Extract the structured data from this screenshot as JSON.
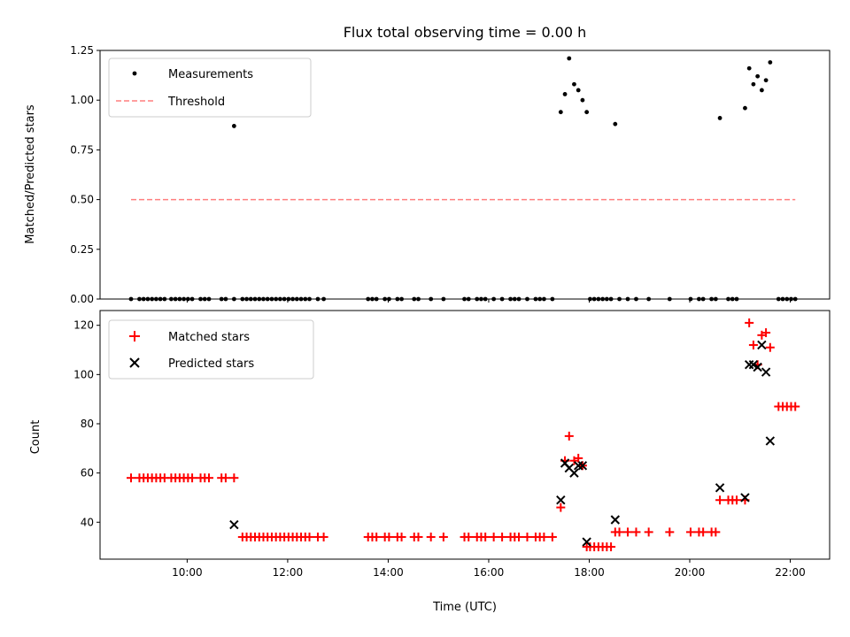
{
  "figure": {
    "title": "Flux total observing time = 0.00 h",
    "xlabel": "Time (UTC)"
  },
  "colors": {
    "measurement": "#000000",
    "threshold": "#ff7f7f",
    "matched": "#ff0000",
    "predicted": "#000000"
  },
  "chart_data": [
    {
      "type": "scatter",
      "title": "Flux total observing time = 0.00 h",
      "xlabel": "Time (UTC)",
      "ylabel": "Matched/Predicted stars",
      "xlim": [
        "08:16",
        "22:47"
      ],
      "ylim": [
        0,
        1.25
      ],
      "yticks": [
        "0.00",
        "0.25",
        "0.50",
        "0.75",
        "1.00",
        "1.25"
      ],
      "legend": {
        "position": "top-left",
        "entries": [
          "Measurements",
          "Threshold"
        ]
      },
      "series": [
        {
          "name": "Measurements",
          "marker": "dot",
          "points": [
            [
              "08:53",
              0
            ],
            [
              "09:03",
              0
            ],
            [
              "09:08",
              0
            ],
            [
              "09:13",
              0
            ],
            [
              "09:18",
              0
            ],
            [
              "09:23",
              0
            ],
            [
              "09:28",
              0
            ],
            [
              "09:33",
              0
            ],
            [
              "09:41",
              0
            ],
            [
              "09:46",
              0
            ],
            [
              "09:51",
              0
            ],
            [
              "09:56",
              0
            ],
            [
              "10:01",
              0
            ],
            [
              "10:06",
              0
            ],
            [
              "10:16",
              0
            ],
            [
              "10:21",
              0
            ],
            [
              "10:26",
              0
            ],
            [
              "10:41",
              0
            ],
            [
              "10:46",
              0
            ],
            [
              "10:56",
              0
            ],
            [
              "10:56",
              0.87
            ],
            [
              "11:06",
              0
            ],
            [
              "11:11",
              0
            ],
            [
              "11:16",
              0
            ],
            [
              "11:21",
              0
            ],
            [
              "11:26",
              0
            ],
            [
              "11:31",
              0
            ],
            [
              "11:36",
              0
            ],
            [
              "11:41",
              0
            ],
            [
              "11:46",
              0
            ],
            [
              "11:51",
              0
            ],
            [
              "11:56",
              0
            ],
            [
              "12:01",
              0
            ],
            [
              "12:06",
              0
            ],
            [
              "12:11",
              0
            ],
            [
              "12:16",
              0
            ],
            [
              "12:21",
              0
            ],
            [
              "12:26",
              0
            ],
            [
              "12:36",
              0
            ],
            [
              "12:43",
              0
            ],
            [
              "13:36",
              0
            ],
            [
              "13:41",
              0
            ],
            [
              "13:46",
              0
            ],
            [
              "13:56",
              0
            ],
            [
              "14:01",
              0
            ],
            [
              "14:11",
              0
            ],
            [
              "14:16",
              0
            ],
            [
              "14:31",
              0
            ],
            [
              "14:36",
              0
            ],
            [
              "14:51",
              0
            ],
            [
              "15:06",
              0
            ],
            [
              "15:31",
              0
            ],
            [
              "15:36",
              0
            ],
            [
              "15:46",
              0
            ],
            [
              "15:51",
              0
            ],
            [
              "15:56",
              0
            ],
            [
              "16:06",
              0
            ],
            [
              "16:16",
              0
            ],
            [
              "16:26",
              0
            ],
            [
              "16:31",
              0
            ],
            [
              "16:36",
              0
            ],
            [
              "16:46",
              0
            ],
            [
              "16:56",
              0
            ],
            [
              "17:01",
              0
            ],
            [
              "17:06",
              0
            ],
            [
              "17:16",
              0
            ],
            [
              "17:26",
              0.94
            ],
            [
              "17:31",
              1.03
            ],
            [
              "17:36",
              1.21
            ],
            [
              "17:42",
              1.08
            ],
            [
              "17:47",
              1.05
            ],
            [
              "17:52",
              1.0
            ],
            [
              "17:57",
              0.94
            ],
            [
              "18:01",
              0
            ],
            [
              "18:06",
              0
            ],
            [
              "18:11",
              0
            ],
            [
              "18:16",
              0
            ],
            [
              "18:21",
              0
            ],
            [
              "18:26",
              0
            ],
            [
              "18:31",
              0.88
            ],
            [
              "18:36",
              0
            ],
            [
              "18:46",
              0
            ],
            [
              "18:56",
              0
            ],
            [
              "19:11",
              0
            ],
            [
              "19:36",
              0
            ],
            [
              "20:01",
              0
            ],
            [
              "20:11",
              0
            ],
            [
              "20:16",
              0
            ],
            [
              "20:26",
              0
            ],
            [
              "20:31",
              0
            ],
            [
              "20:36",
              0.91
            ],
            [
              "20:46",
              0
            ],
            [
              "20:51",
              0
            ],
            [
              "20:56",
              0
            ],
            [
              "21:06",
              0.96
            ],
            [
              "21:11",
              1.16
            ],
            [
              "21:16",
              1.08
            ],
            [
              "21:21",
              1.12
            ],
            [
              "21:26",
              1.05
            ],
            [
              "21:31",
              1.1
            ],
            [
              "21:36",
              1.19
            ],
            [
              "21:46",
              0
            ],
            [
              "21:51",
              0
            ],
            [
              "21:56",
              0
            ],
            [
              "22:01",
              0
            ],
            [
              "22:06",
              0
            ]
          ]
        },
        {
          "name": "Threshold",
          "style": "dashed",
          "x": [
            "08:53",
            "22:06"
          ],
          "y": [
            0.5,
            0.5
          ]
        }
      ]
    },
    {
      "type": "scatter",
      "xlabel": "Time (UTC)",
      "ylabel": "Count",
      "xlim": [
        "08:16",
        "22:47"
      ],
      "ylim": [
        25,
        126
      ],
      "yticks": [
        "40",
        "60",
        "80",
        "100",
        "120"
      ],
      "xticks": [
        "10:00",
        "12:00",
        "14:00",
        "16:00",
        "18:00",
        "20:00",
        "22:00"
      ],
      "legend": {
        "position": "top-left",
        "entries": [
          "Matched stars",
          "Predicted stars"
        ]
      },
      "series": [
        {
          "name": "Matched stars",
          "marker": "plus",
          "points": [
            [
              "08:53",
              58
            ],
            [
              "09:03",
              58
            ],
            [
              "09:08",
              58
            ],
            [
              "09:13",
              58
            ],
            [
              "09:18",
              58
            ],
            [
              "09:23",
              58
            ],
            [
              "09:28",
              58
            ],
            [
              "09:33",
              58
            ],
            [
              "09:41",
              58
            ],
            [
              "09:46",
              58
            ],
            [
              "09:51",
              58
            ],
            [
              "09:56",
              58
            ],
            [
              "10:01",
              58
            ],
            [
              "10:06",
              58
            ],
            [
              "10:16",
              58
            ],
            [
              "10:21",
              58
            ],
            [
              "10:26",
              58
            ],
            [
              "10:41",
              58
            ],
            [
              "10:46",
              58
            ],
            [
              "10:56",
              58
            ],
            [
              "11:06",
              34
            ],
            [
              "11:11",
              34
            ],
            [
              "11:16",
              34
            ],
            [
              "11:21",
              34
            ],
            [
              "11:26",
              34
            ],
            [
              "11:31",
              34
            ],
            [
              "11:36",
              34
            ],
            [
              "11:41",
              34
            ],
            [
              "11:46",
              34
            ],
            [
              "11:51",
              34
            ],
            [
              "11:56",
              34
            ],
            [
              "12:01",
              34
            ],
            [
              "12:06",
              34
            ],
            [
              "12:11",
              34
            ],
            [
              "12:16",
              34
            ],
            [
              "12:21",
              34
            ],
            [
              "12:26",
              34
            ],
            [
              "12:36",
              34
            ],
            [
              "12:43",
              34
            ],
            [
              "13:36",
              34
            ],
            [
              "13:41",
              34
            ],
            [
              "13:46",
              34
            ],
            [
              "13:56",
              34
            ],
            [
              "14:01",
              34
            ],
            [
              "14:11",
              34
            ],
            [
              "14:16",
              34
            ],
            [
              "14:31",
              34
            ],
            [
              "14:36",
              34
            ],
            [
              "14:51",
              34
            ],
            [
              "15:06",
              34
            ],
            [
              "15:31",
              34
            ],
            [
              "15:36",
              34
            ],
            [
              "15:46",
              34
            ],
            [
              "15:51",
              34
            ],
            [
              "15:56",
              34
            ],
            [
              "16:06",
              34
            ],
            [
              "16:16",
              34
            ],
            [
              "16:26",
              34
            ],
            [
              "16:31",
              34
            ],
            [
              "16:36",
              34
            ],
            [
              "16:46",
              34
            ],
            [
              "16:56",
              34
            ],
            [
              "17:01",
              34
            ],
            [
              "17:06",
              34
            ],
            [
              "17:16",
              34
            ],
            [
              "17:26",
              46
            ],
            [
              "17:31",
              65
            ],
            [
              "17:36",
              75
            ],
            [
              "17:42",
              65
            ],
            [
              "17:47",
              66
            ],
            [
              "17:52",
              63
            ],
            [
              "17:57",
              30
            ],
            [
              "18:01",
              30
            ],
            [
              "18:06",
              30
            ],
            [
              "18:11",
              30
            ],
            [
              "18:16",
              30
            ],
            [
              "18:21",
              30
            ],
            [
              "18:26",
              30
            ],
            [
              "18:31",
              36
            ],
            [
              "18:36",
              36
            ],
            [
              "18:46",
              36
            ],
            [
              "18:56",
              36
            ],
            [
              "19:11",
              36
            ],
            [
              "19:36",
              36
            ],
            [
              "20:01",
              36
            ],
            [
              "20:11",
              36
            ],
            [
              "20:16",
              36
            ],
            [
              "20:26",
              36
            ],
            [
              "20:31",
              36
            ],
            [
              "20:36",
              49
            ],
            [
              "20:46",
              49
            ],
            [
              "20:51",
              49
            ],
            [
              "20:56",
              49
            ],
            [
              "21:06",
              49
            ],
            [
              "21:11",
              121
            ],
            [
              "21:16",
              112
            ],
            [
              "21:21",
              104
            ],
            [
              "21:26",
              116
            ],
            [
              "21:31",
              117
            ],
            [
              "21:36",
              111
            ],
            [
              "21:46",
              87
            ],
            [
              "21:51",
              87
            ],
            [
              "21:56",
              87
            ],
            [
              "22:01",
              87
            ],
            [
              "22:06",
              87
            ]
          ]
        },
        {
          "name": "Predicted stars",
          "marker": "x",
          "points": [
            [
              "10:56",
              39
            ],
            [
              "17:26",
              49
            ],
            [
              "17:31",
              64
            ],
            [
              "17:36",
              62
            ],
            [
              "17:42",
              60
            ],
            [
              "17:47",
              63
            ],
            [
              "17:52",
              63
            ],
            [
              "17:57",
              32
            ],
            [
              "18:31",
              41
            ],
            [
              "20:36",
              54
            ],
            [
              "21:06",
              50
            ],
            [
              "21:11",
              104
            ],
            [
              "21:16",
              104
            ],
            [
              "21:21",
              103
            ],
            [
              "21:26",
              112
            ],
            [
              "21:31",
              101
            ],
            [
              "21:36",
              73
            ]
          ]
        }
      ]
    }
  ]
}
